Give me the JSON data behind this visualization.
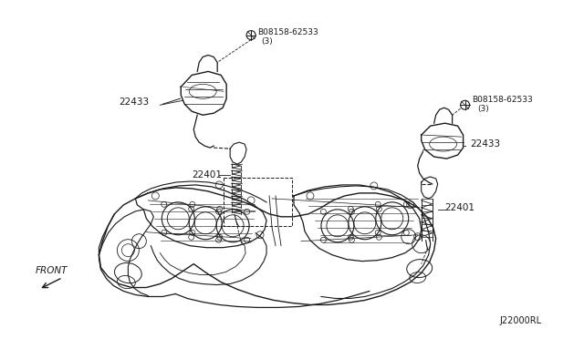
{
  "bg_color": "#ffffff",
  "line_color": "#1a1a1a",
  "fig_width": 6.4,
  "fig_height": 3.72,
  "dpi": 100,
  "labels": {
    "bolt_left_text": "B08158-62533\n(3)",
    "bolt_right_text": "B08158-62533\n(3)",
    "coil_left": "22433",
    "coil_right": "22433",
    "plug_left": "22401",
    "plug_right": "22401",
    "front": "FRONT",
    "ref": "J22000RL"
  }
}
